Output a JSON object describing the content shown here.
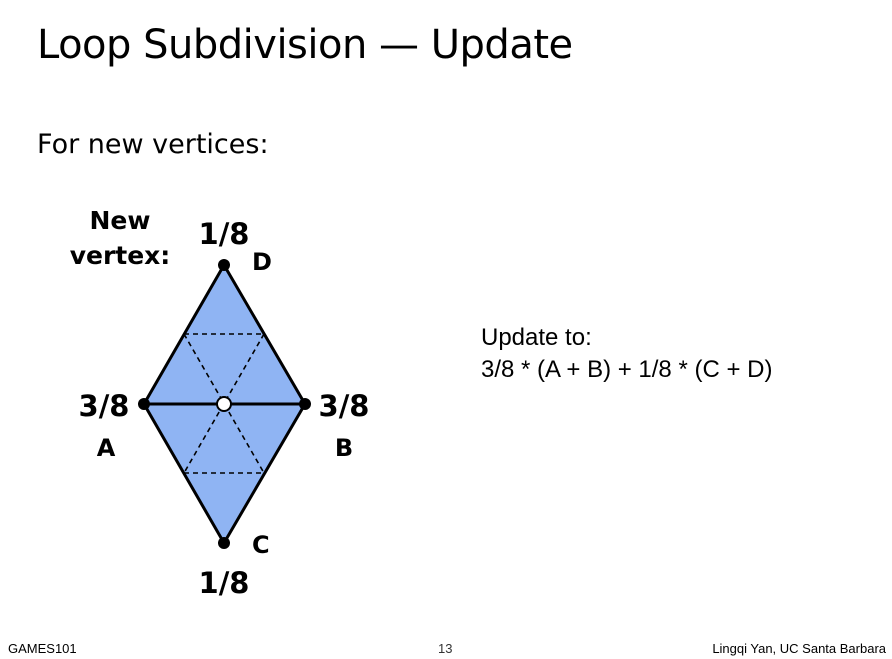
{
  "slide": {
    "title": "Loop Subdivision — Update",
    "subtitle": "For new vertices:"
  },
  "diagram": {
    "new_vertex_label_line1": "New",
    "new_vertex_label_line2": "vertex:",
    "weight_D": "1/8",
    "label_D": "D",
    "weight_A": "3/8",
    "label_A": "A",
    "weight_B": "3/8",
    "label_B": "B",
    "weight_C": "1/8",
    "label_C": "C",
    "fill_color": "#8fb4f3",
    "stroke_color": "#000000"
  },
  "update": {
    "line1": "Update to:",
    "line2": "3/8 * (A + B) + 1/8 * (C + D)"
  },
  "footer": {
    "left": "GAMES101",
    "page_number": "13",
    "right": "Lingqi Yan, UC Santa Barbara"
  }
}
